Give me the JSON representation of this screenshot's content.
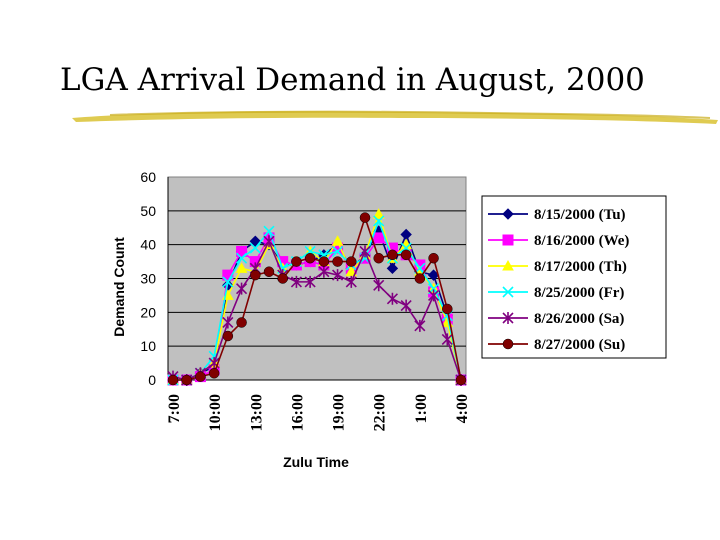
{
  "slide": {
    "title": "LGA Arrival Demand in August, 2000"
  },
  "colors": {
    "plot_background": "#c0c0c0",
    "underline": "#d9c233"
  },
  "chart_data": {
    "type": "line",
    "title": "",
    "xlabel": "Zulu Time",
    "ylabel": "Demand Count",
    "ylim": [
      0,
      60
    ],
    "yticks": [
      0,
      10,
      20,
      30,
      40,
      50,
      60
    ],
    "x_tick_labels": [
      "7:00",
      "10:00",
      "13:00",
      "16:00",
      "19:00",
      "22:00",
      "1:00",
      "4:00"
    ],
    "x": [
      0,
      1,
      2,
      3,
      4,
      5,
      6,
      7,
      8,
      9,
      10,
      11,
      12,
      13,
      14,
      15,
      16,
      17,
      18,
      19,
      20,
      21
    ],
    "grid": "horizontal",
    "legend_position": "right",
    "series": [
      {
        "name": "8/15/2000 (Tu)",
        "color": "#000080",
        "marker": "diamond",
        "values": [
          0,
          0,
          2,
          4,
          28,
          38,
          41,
          40,
          34,
          34,
          35,
          37,
          40,
          33,
          37,
          44,
          33,
          43,
          32,
          31,
          19,
          0
        ]
      },
      {
        "name": "8/16/2000 (We)",
        "color": "#ff00ff",
        "marker": "square",
        "values": [
          0,
          0,
          1,
          3,
          31,
          38,
          35,
          42,
          35,
          34,
          35,
          34,
          39,
          33,
          36,
          42,
          39,
          37,
          34,
          26,
          18,
          0
        ]
      },
      {
        "name": "8/17/2000 (Th)",
        "color": "#ffff00",
        "marker": "triangle",
        "values": [
          0,
          0,
          2,
          5,
          25,
          33,
          32,
          40,
          33,
          35,
          38,
          35,
          41,
          32,
          37,
          49,
          36,
          40,
          32,
          27,
          17,
          0
        ]
      },
      {
        "name": "8/25/2000 (Fr)",
        "color": "#00ffff",
        "marker": "x",
        "values": [
          0,
          0,
          2,
          7,
          29,
          36,
          39,
          44,
          33,
          35,
          38,
          37,
          38,
          34,
          36,
          47,
          36,
          39,
          33,
          27,
          19,
          0
        ]
      },
      {
        "name": "8/26/2000 (Sa)",
        "color": "#800080",
        "marker": "star",
        "values": [
          1,
          0,
          2,
          5,
          17,
          27,
          33,
          41,
          31,
          29,
          29,
          32,
          31,
          29,
          38,
          28,
          24,
          22,
          16,
          25,
          12,
          0
        ]
      },
      {
        "name": "8/27/2000 (Su)",
        "color": "#800000",
        "marker": "circle",
        "values": [
          0,
          0,
          1,
          2,
          13,
          17,
          31,
          32,
          30,
          35,
          36,
          35,
          35,
          35,
          48,
          36,
          37,
          37,
          30,
          36,
          21,
          0
        ]
      }
    ]
  }
}
